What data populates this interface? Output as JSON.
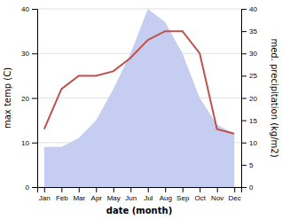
{
  "chart_data": {
    "type": "line",
    "categories": [
      "Jan",
      "Feb",
      "Mar",
      "Apr",
      "May",
      "Jun",
      "Jul",
      "Aug",
      "Sep",
      "Oct",
      "Nov",
      "Dec"
    ],
    "xlabel": "date (month)",
    "ylabel": "max temp (C)",
    "y2label": "med. precipitation (kg/m2)",
    "ylim": [
      0,
      40
    ],
    "yticks": [
      0,
      10,
      20,
      30,
      40
    ],
    "y2lim": [
      0,
      40
    ],
    "y2ticks": [
      0,
      5,
      10,
      15,
      20,
      25,
      30,
      35,
      40
    ],
    "grid": true,
    "series": [
      {
        "type": "line",
        "color": "#c0504d",
        "values": [
          13,
          22,
          25,
          25,
          26,
          29,
          33,
          35,
          35,
          30,
          13,
          12
        ]
      },
      {
        "type": "area",
        "axis": "y2",
        "color": "#c5cdf0",
        "values": [
          9,
          9,
          11,
          15,
          22,
          30,
          40,
          37,
          30,
          20,
          14,
          12
        ]
      }
    ]
  }
}
